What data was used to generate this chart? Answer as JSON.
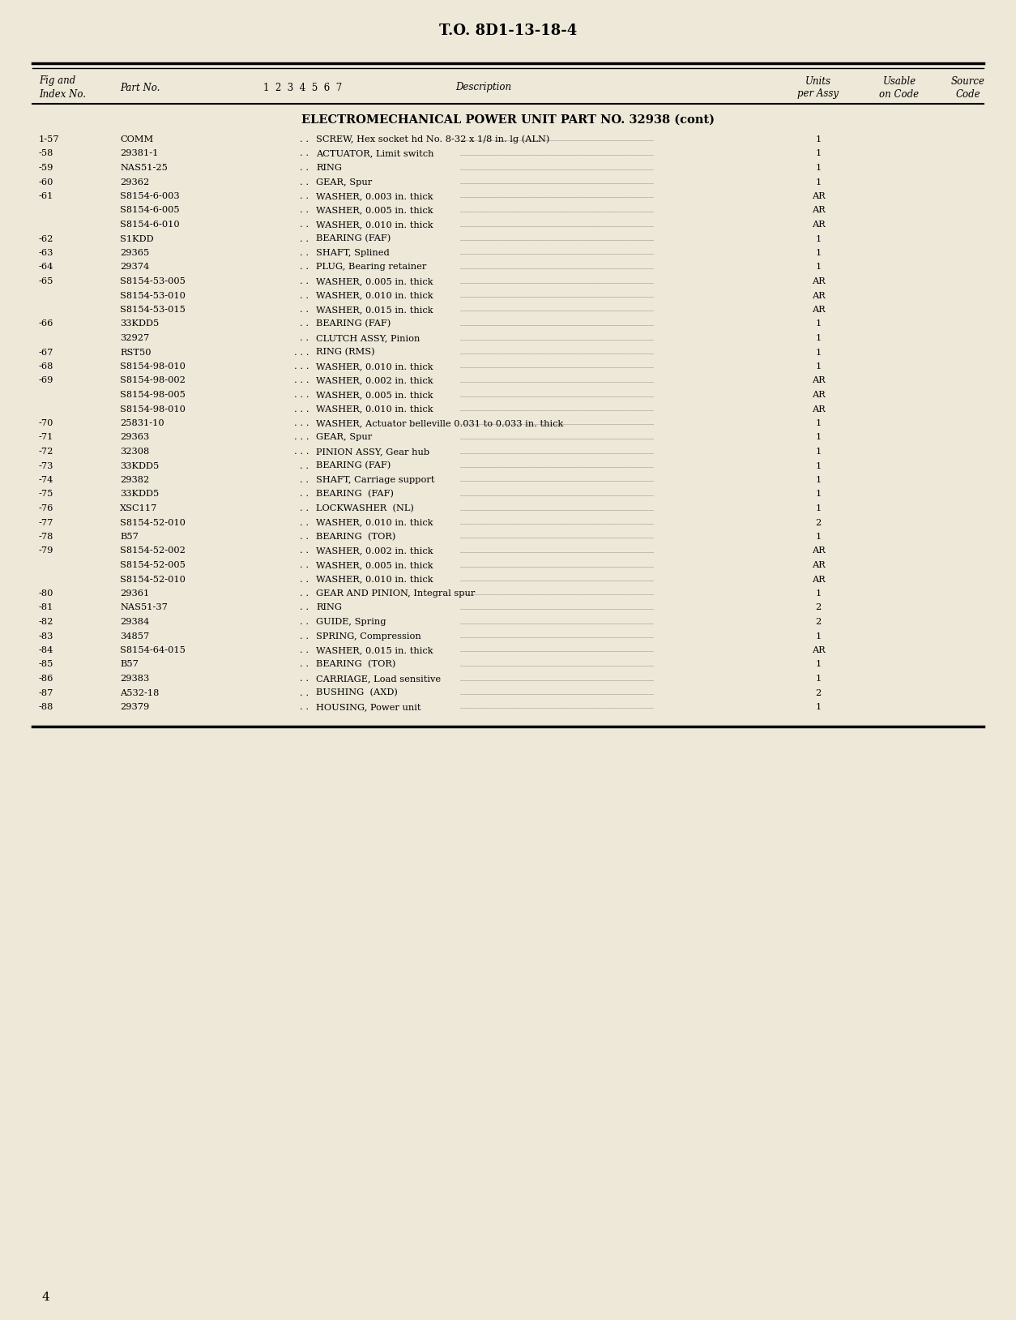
{
  "bg_color": "#ede8d8",
  "top_title": "T.O. 8D1-13-18-4",
  "section_title": "ELECTROMECHANICAL POWER UNIT PART NO. 32938 (cont)",
  "header_cols": {
    "fig_index": "Fig and\nIndex No.",
    "part_no": "Part No.",
    "indent_cols": "1  2  3  4  5  6  7",
    "description": "Description",
    "units": "Units\nper Assy",
    "usable": "Usable\non Code",
    "source": "Source\nCode"
  },
  "rows": [
    {
      "fig": "1-57",
      "part": "COMM",
      "indent": 2,
      "desc": "SCREW, Hex socket hd No. 8-32 x 1/8 in. lg (ALN)",
      "units": "1"
    },
    {
      "fig": "-58",
      "part": "29381-1",
      "indent": 2,
      "desc": "ACTUATOR, Limit switch",
      "units": "1"
    },
    {
      "fig": "-59",
      "part": "NAS51-25",
      "indent": 2,
      "desc": "RING",
      "units": "1"
    },
    {
      "fig": "-60",
      "part": "29362",
      "indent": 2,
      "desc": "GEAR, Spur",
      "units": "1"
    },
    {
      "fig": "-61",
      "part": "S8154-6-003",
      "indent": 2,
      "desc": "WASHER, 0.003 in. thick",
      "units": "AR"
    },
    {
      "fig": "",
      "part": "S8154-6-005",
      "indent": 2,
      "desc": "WASHER, 0.005 in. thick",
      "units": "AR"
    },
    {
      "fig": "",
      "part": "S8154-6-010",
      "indent": 2,
      "desc": "WASHER, 0.010 in. thick",
      "units": "AR"
    },
    {
      "fig": "-62",
      "part": "S1KDD",
      "indent": 2,
      "desc": "BEARING (FAF)",
      "units": "1"
    },
    {
      "fig": "-63",
      "part": "29365",
      "indent": 2,
      "desc": "SHAFT, Splined",
      "units": "1"
    },
    {
      "fig": "-64",
      "part": "29374",
      "indent": 2,
      "desc": "PLUG, Bearing retainer",
      "units": "1"
    },
    {
      "fig": "-65",
      "part": "S8154-53-005",
      "indent": 2,
      "desc": "WASHER, 0.005 in. thick",
      "units": "AR"
    },
    {
      "fig": "",
      "part": "S8154-53-010",
      "indent": 2,
      "desc": "WASHER, 0.010 in. thick",
      "units": "AR"
    },
    {
      "fig": "",
      "part": "S8154-53-015",
      "indent": 2,
      "desc": "WASHER, 0.015 in. thick",
      "units": "AR"
    },
    {
      "fig": "-66",
      "part": "33KDD5",
      "indent": 2,
      "desc": "BEARING (FAF)",
      "units": "1"
    },
    {
      "fig": "",
      "part": "32927",
      "indent": 2,
      "desc": "CLUTCH ASSY, Pinion",
      "units": "1"
    },
    {
      "fig": "-67",
      "part": "RST50",
      "indent": 3,
      "desc": "RING (RMS)",
      "units": "1"
    },
    {
      "fig": "-68",
      "part": "S8154-98-010",
      "indent": 3,
      "desc": "WASHER, 0.010 in. thick",
      "units": "1"
    },
    {
      "fig": "-69",
      "part": "S8154-98-002",
      "indent": 3,
      "desc": "WASHER, 0.002 in. thick",
      "units": "AR"
    },
    {
      "fig": "",
      "part": "S8154-98-005",
      "indent": 3,
      "desc": "WASHER, 0.005 in. thick",
      "units": "AR"
    },
    {
      "fig": "",
      "part": "S8154-98-010",
      "indent": 3,
      "desc": "WASHER, 0.010 in. thick",
      "units": "AR"
    },
    {
      "fig": "-70",
      "part": "25831-10",
      "indent": 3,
      "desc": "WASHER, Actuator belleville 0.031 to 0.033 in. thick",
      "units": "1"
    },
    {
      "fig": "-71",
      "part": "29363",
      "indent": 3,
      "desc": "GEAR, Spur",
      "units": "1"
    },
    {
      "fig": "-72",
      "part": "32308",
      "indent": 3,
      "desc": "PINION ASSY, Gear hub",
      "units": "1"
    },
    {
      "fig": "-73",
      "part": "33KDD5",
      "indent": 2,
      "desc": "BEARING (FAF)",
      "units": "1"
    },
    {
      "fig": "-74",
      "part": "29382",
      "indent": 2,
      "desc": "SHAFT, Carriage support",
      "units": "1"
    },
    {
      "fig": "-75",
      "part": "33KDD5",
      "indent": 2,
      "desc": "BEARING  (FAF)",
      "units": "1"
    },
    {
      "fig": "-76",
      "part": "XSC117",
      "indent": 2,
      "desc": "LOCKWASHER  (NL)",
      "units": "1"
    },
    {
      "fig": "-77",
      "part": "S8154-52-010",
      "indent": 2,
      "desc": "WASHER, 0.010 in. thick",
      "units": "2"
    },
    {
      "fig": "-78",
      "part": "B57",
      "indent": 2,
      "desc": "BEARING  (TOR)",
      "units": "1"
    },
    {
      "fig": "-79",
      "part": "S8154-52-002",
      "indent": 2,
      "desc": "WASHER, 0.002 in. thick",
      "units": "AR"
    },
    {
      "fig": "",
      "part": "S8154-52-005",
      "indent": 2,
      "desc": "WASHER, 0.005 in. thick",
      "units": "AR"
    },
    {
      "fig": "",
      "part": "S8154-52-010",
      "indent": 2,
      "desc": "WASHER, 0.010 in. thick",
      "units": "AR"
    },
    {
      "fig": "-80",
      "part": "29361",
      "indent": 2,
      "desc": "GEAR AND PINION, Integral spur",
      "units": "1"
    },
    {
      "fig": "-81",
      "part": "NAS51-37",
      "indent": 2,
      "desc": "RING",
      "units": "2"
    },
    {
      "fig": "-82",
      "part": "29384",
      "indent": 2,
      "desc": "GUIDE, Spring",
      "units": "2"
    },
    {
      "fig": "-83",
      "part": "34857",
      "indent": 2,
      "desc": "SPRING, Compression",
      "units": "1"
    },
    {
      "fig": "-84",
      "part": "S8154-64-015",
      "indent": 2,
      "desc": "WASHER, 0.015 in. thick",
      "units": "AR"
    },
    {
      "fig": "-85",
      "part": "B57",
      "indent": 2,
      "desc": "BEARING  (TOR)",
      "units": "1"
    },
    {
      "fig": "-86",
      "part": "29383",
      "indent": 2,
      "desc": "CARRIAGE, Load sensitive",
      "units": "1"
    },
    {
      "fig": "-87",
      "part": "A532-18",
      "indent": 2,
      "desc": "BUSHING  (AXD)",
      "units": "2"
    },
    {
      "fig": "-88",
      "part": "29379",
      "indent": 2,
      "desc": "HOUSING, Power unit",
      "units": "1"
    }
  ],
  "page_number": "4"
}
